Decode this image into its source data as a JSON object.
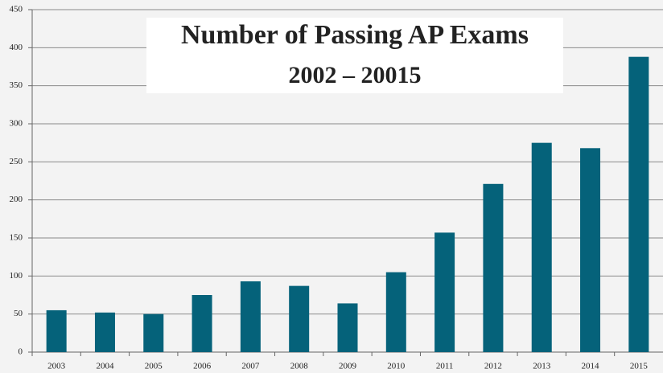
{
  "chart_data": {
    "type": "bar",
    "title": "Number of Passing AP Exams",
    "subtitle": "2002 – 20015",
    "categories": [
      "2003",
      "2004",
      "2005",
      "2006",
      "2007",
      "2008",
      "2009",
      "2010",
      "2011",
      "2012",
      "2013",
      "2014",
      "2015"
    ],
    "values": [
      55,
      52,
      50,
      75,
      93,
      87,
      64,
      105,
      157,
      221,
      275,
      268,
      388
    ],
    "color": "#05627a",
    "ylim": [
      0,
      450
    ],
    "yticks": [
      0,
      50,
      100,
      150,
      200,
      250,
      300,
      350,
      400,
      450
    ],
    "grid": true
  }
}
